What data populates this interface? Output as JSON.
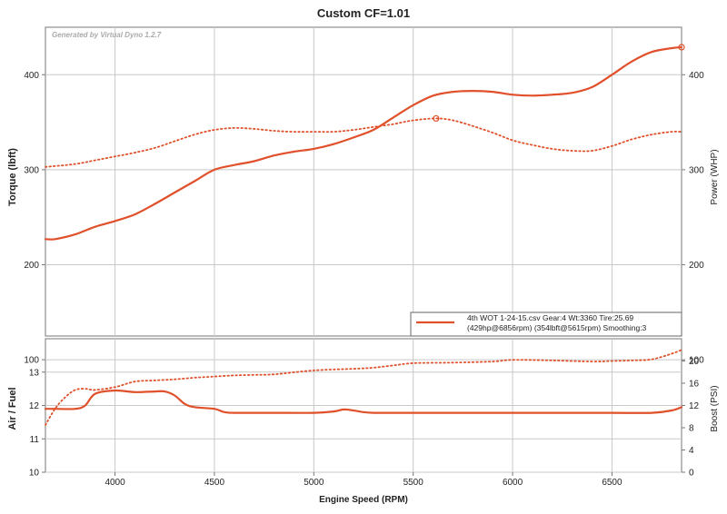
{
  "chart_data": [
    {
      "type": "line",
      "title": "Custom CF=1.01",
      "watermark": "Generated by Virtual Dyno 1.2.7",
      "ylabel": "Torque (lbft)",
      "y2label": "Power (WHP)",
      "xlim": [
        3650,
        6850
      ],
      "ylim": [
        125,
        450
      ],
      "y2lim": [
        125,
        450
      ],
      "yticks": [
        100,
        200,
        300,
        400
      ],
      "y2ticks": [
        100,
        200,
        300,
        400
      ],
      "grid": true,
      "legend": {
        "placement": "bottom-right",
        "line1": "4th WOT 1-24-15.csv Gear:4 Wt:3360 Tire:25.69",
        "line2": "(429hp@6856rpm) (354lbft@5615rpm) Smoothing:3"
      },
      "color": "#e0502a",
      "series": [
        {
          "style": "solid",
          "x": [
            3650,
            3700,
            3800,
            3900,
            4000,
            4100,
            4200,
            4300,
            4400,
            4500,
            4600,
            4700,
            4800,
            4900,
            5000,
            5100,
            5200,
            5300,
            5400,
            5500,
            5600,
            5700,
            5800,
            5900,
            6000,
            6100,
            6200,
            6300,
            6400,
            6500,
            6600,
            6700,
            6800,
            6856
          ],
          "values": [
            227,
            227,
            232,
            240,
            246,
            253,
            264,
            276,
            288,
            300,
            305,
            309,
            315,
            319,
            322,
            327,
            334,
            342,
            355,
            368,
            378,
            382,
            383,
            382,
            379,
            378,
            379,
            381,
            387,
            400,
            414,
            424,
            428,
            429
          ]
        },
        {
          "style": "dotted",
          "x": [
            3650,
            3800,
            3900,
            4000,
            4100,
            4200,
            4300,
            4400,
            4500,
            4600,
            4700,
            4800,
            4900,
            5000,
            5100,
            5200,
            5300,
            5400,
            5500,
            5615,
            5700,
            5800,
            5900,
            6000,
            6100,
            6200,
            6300,
            6400,
            6500,
            6600,
            6700,
            6800,
            6856
          ],
          "values": [
            303,
            306,
            310,
            314,
            318,
            323,
            330,
            337,
            342,
            344,
            343,
            341,
            340,
            340,
            340,
            342,
            345,
            348,
            352,
            354,
            352,
            346,
            339,
            331,
            326,
            322,
            320,
            320,
            325,
            332,
            337,
            340,
            340
          ]
        }
      ],
      "markers": [
        {
          "x": 5615,
          "y": 354,
          "series": "dotted"
        },
        {
          "x": 6856,
          "y": 429,
          "series": "solid"
        }
      ]
    },
    {
      "type": "line",
      "xlabel": "Engine Speed (RPM)",
      "ylabel": "Air / Fuel",
      "y2label": "Boost (PSI)",
      "xlim": [
        3650,
        6850
      ],
      "xticks": [
        4000,
        4500,
        5000,
        5500,
        6000,
        6500
      ],
      "ylim": [
        10,
        14
      ],
      "yticks": [
        10,
        11,
        12,
        13
      ],
      "y2lim": [
        0,
        24
      ],
      "y2ticks": [
        0,
        4,
        8,
        12,
        16,
        20
      ],
      "grid": true,
      "color": "#e0502a",
      "series": [
        {
          "style": "solid",
          "axis": "left",
          "x": [
            3650,
            3700,
            3800,
            3850,
            3900,
            4000,
            4100,
            4200,
            4250,
            4300,
            4350,
            4400,
            4500,
            4550,
            4600,
            4700,
            4800,
            5000,
            5100,
            5150,
            5200,
            5250,
            5300,
            5400,
            5500,
            6000,
            6500,
            6700,
            6800,
            6850
          ],
          "values": [
            11.9,
            11.9,
            11.9,
            12.0,
            12.35,
            12.45,
            12.4,
            12.42,
            12.42,
            12.3,
            12.05,
            11.95,
            11.9,
            11.8,
            11.78,
            11.78,
            11.78,
            11.78,
            11.82,
            11.88,
            11.85,
            11.8,
            11.78,
            11.78,
            11.78,
            11.78,
            11.78,
            11.78,
            11.85,
            11.95
          ]
        },
        {
          "style": "dotted",
          "axis": "right",
          "x": [
            3650,
            3700,
            3750,
            3800,
            3850,
            3900,
            4000,
            4100,
            4200,
            4300,
            4400,
            4500,
            4600,
            4700,
            4800,
            5000,
            5200,
            5300,
            5400,
            5500,
            5700,
            5900,
            6000,
            6200,
            6400,
            6500,
            6600,
            6700,
            6800,
            6850
          ],
          "values": [
            8.5,
            11.5,
            13.5,
            14.8,
            15.0,
            14.8,
            15.3,
            16.3,
            16.5,
            16.7,
            17.0,
            17.2,
            17.4,
            17.5,
            17.6,
            18.3,
            18.6,
            18.8,
            19.2,
            19.6,
            19.7,
            19.9,
            20.2,
            20.1,
            19.9,
            20.0,
            20.1,
            20.3,
            21.3,
            22.0
          ]
        }
      ]
    }
  ]
}
